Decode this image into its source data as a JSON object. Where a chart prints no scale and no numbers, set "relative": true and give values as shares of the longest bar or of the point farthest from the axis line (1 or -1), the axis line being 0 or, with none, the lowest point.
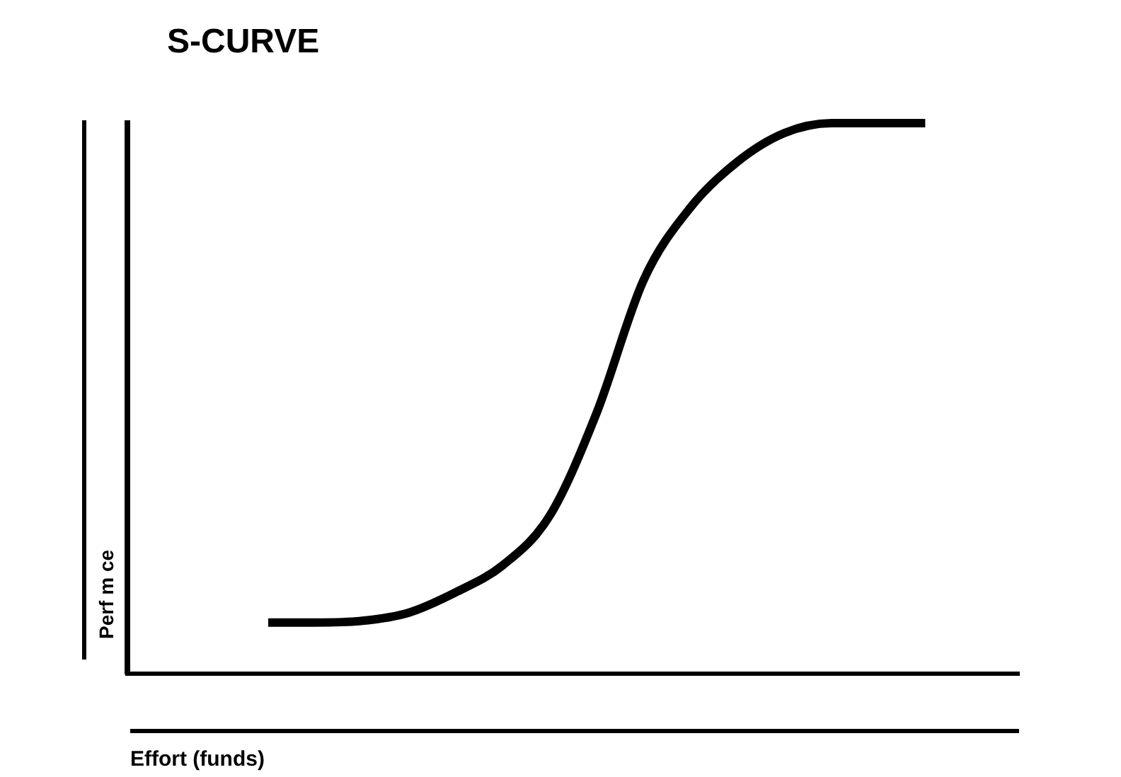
{
  "chart_data": {
    "type": "line",
    "title": "S-CURVE",
    "xlabel": "Effort (funds)",
    "ylabel": "Perf m ce",
    "relative": true,
    "categories": [
      null,
      null,
      null,
      null,
      null,
      null,
      null,
      null,
      null,
      null,
      null,
      null,
      null,
      null,
      null,
      null,
      null,
      null,
      null,
      null
    ],
    "series": [
      {
        "color": "#000000",
        "values": [
          null,
          null,
          null,
          0.093,
          0.093,
          0.096,
          0.111,
          0.148,
          0.197,
          0.287,
          0.474,
          0.715,
          0.847,
          0.93,
          0.982,
          1,
          1,
          1,
          null,
          null
        ]
      }
    ],
    "legend": false,
    "grid": false,
    "marker": "none",
    "line_style": "solid"
  }
}
